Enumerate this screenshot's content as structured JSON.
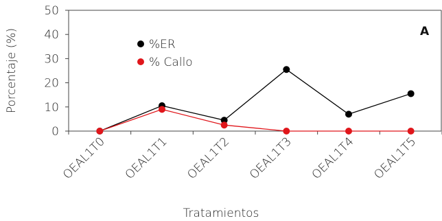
{
  "chart_data": {
    "type": "line",
    "categories": [
      "OEAL1T0",
      "OEAL1T1",
      "OEAL1T2",
      "OEAL1T3",
      "OEAL1T4",
      "OEAL1T5"
    ],
    "series": [
      {
        "name": "%ER",
        "values": [
          0,
          10.5,
          4.5,
          25.5,
          7,
          15.5
        ],
        "color": "#000000"
      },
      {
        "name": "% Callo",
        "values": [
          0,
          9,
          2.5,
          0,
          0,
          0
        ],
        "color": "#e0161b"
      }
    ],
    "xlabel": "Tratamientos",
    "ylabel": "Porcentaje (%)",
    "ylim": [
      0,
      50
    ],
    "yticks": [
      0,
      10,
      20,
      30,
      40,
      50
    ],
    "panel_label": "A",
    "legend_position": "top-left",
    "grid": false
  }
}
